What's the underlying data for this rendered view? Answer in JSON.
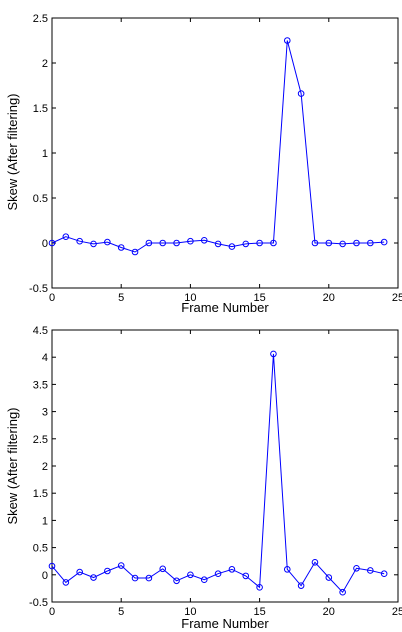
{
  "chart_data": [
    {
      "type": "line",
      "title": "",
      "xlabel": "Frame Number",
      "ylabel": "Skew (After filtering)",
      "xlim": [
        0,
        25
      ],
      "ylim": [
        -0.5,
        2.5
      ],
      "xticks": [
        "0",
        "5",
        "10",
        "15",
        "20",
        "25"
      ],
      "yticks": [
        "-0.5",
        "0",
        "0.5",
        "1",
        "1.5",
        "2",
        "2.5"
      ],
      "grid": false,
      "legend": "none",
      "series": [
        {
          "color": "#0000ff",
          "marker": "circle",
          "x": [
            0,
            1,
            2,
            3,
            4,
            5,
            6,
            7,
            8,
            9,
            10,
            11,
            12,
            13,
            14,
            15,
            16,
            17,
            18,
            19,
            20,
            21,
            22,
            23,
            24
          ],
          "y": [
            0.0,
            0.07,
            0.02,
            -0.01,
            0.01,
            -0.05,
            -0.1,
            0.0,
            0.0,
            0.0,
            0.02,
            0.03,
            -0.01,
            -0.04,
            -0.01,
            0.0,
            0.0,
            2.25,
            1.66,
            0.0,
            0.0,
            -0.01,
            0.0,
            0.0,
            0.01
          ]
        }
      ]
    },
    {
      "type": "line",
      "title": "",
      "xlabel": "Frame Number",
      "ylabel": "Skew (After filtering)",
      "xlim": [
        0,
        25
      ],
      "ylim": [
        -0.5,
        4.5
      ],
      "xticks": [
        "0",
        "5",
        "10",
        "15",
        "20",
        "25"
      ],
      "yticks": [
        "-0.5",
        "0",
        "0.5",
        "1",
        "1.5",
        "2",
        "2.5",
        "3",
        "3.5",
        "4",
        "4.5"
      ],
      "grid": false,
      "legend": "none",
      "series": [
        {
          "color": "#0000ff",
          "marker": "circle",
          "x": [
            0,
            1,
            2,
            3,
            4,
            5,
            6,
            7,
            8,
            9,
            10,
            11,
            12,
            13,
            14,
            15,
            16,
            17,
            18,
            19,
            20,
            21,
            22,
            23,
            24
          ],
          "y": [
            0.16,
            -0.14,
            0.05,
            -0.05,
            0.07,
            0.17,
            -0.06,
            -0.06,
            0.11,
            -0.11,
            0.0,
            -0.09,
            0.02,
            0.1,
            -0.02,
            -0.23,
            4.06,
            0.1,
            -0.2,
            0.23,
            -0.05,
            -0.32,
            0.12,
            0.08,
            0.02
          ]
        }
      ]
    }
  ]
}
